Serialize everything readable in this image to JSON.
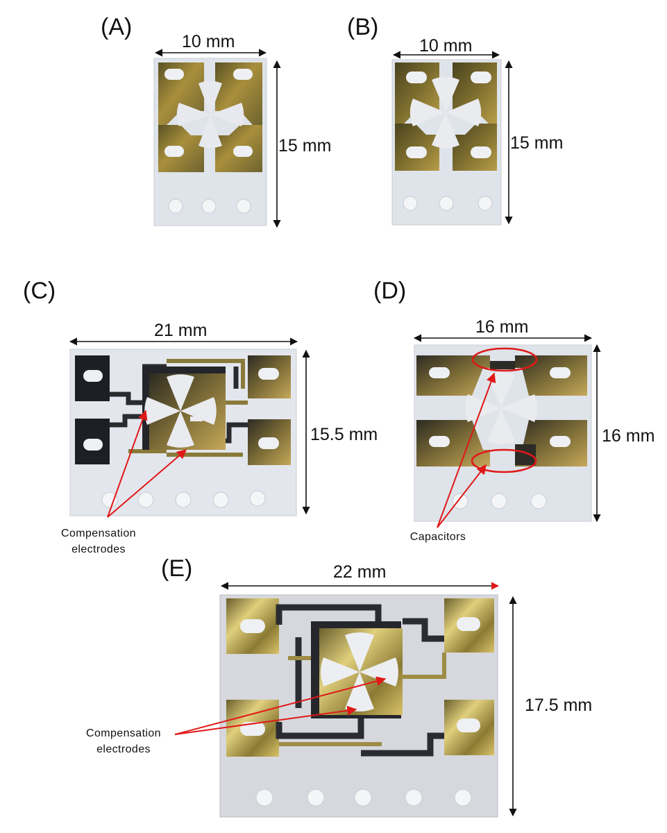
{
  "panels": {
    "a": {
      "label": "(A)",
      "width": "10 mm",
      "height": "15 mm"
    },
    "b": {
      "label": "(B)",
      "width": "10 mm",
      "height": "15 mm"
    },
    "c": {
      "label": "(C)",
      "width": "21 mm",
      "height": "15.5 mm",
      "annotation_line1": "Compensation",
      "annotation_line2": "electrodes"
    },
    "d": {
      "label": "(D)",
      "width": "16 mm",
      "height": "16 mm",
      "annotation": "Capacitors"
    },
    "e": {
      "label": "(E)",
      "width": "22 mm",
      "height": "17.5 mm",
      "annotation_line1": "Compensation",
      "annotation_line2": "electrodes"
    }
  },
  "colors": {
    "gold": "#a88f3c",
    "dark_gold": "#3a3520",
    "substrate": "#dfe3ea",
    "annotation_red": "#e01818"
  }
}
